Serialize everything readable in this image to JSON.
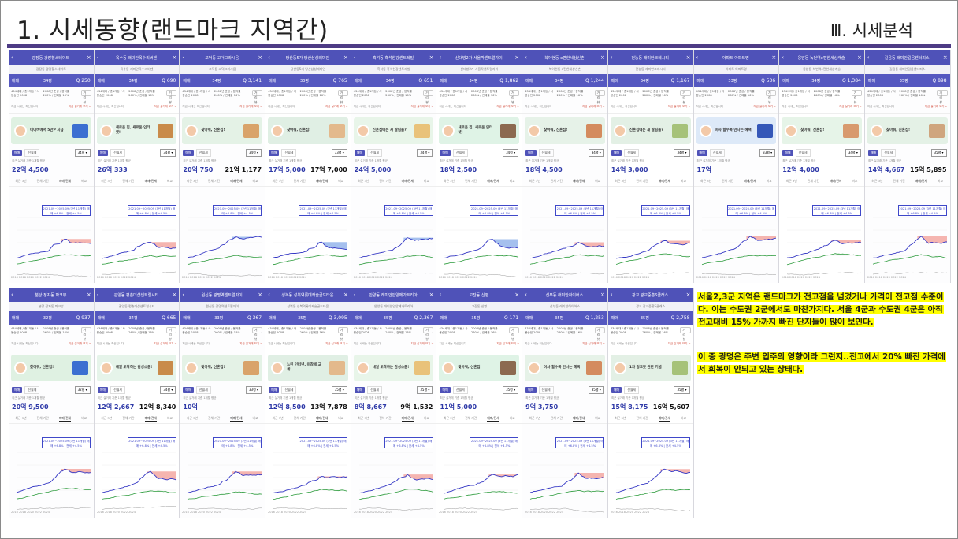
{
  "slide": {
    "title": "1. 시세동향(랜드마크 지역간)",
    "section": "Ⅲ. 시세분석"
  },
  "colors": {
    "accent": "#4d3b85",
    "header": "#4f52b8",
    "line_sale": "#3437c4",
    "line_jeonse": "#2a9a3a",
    "area_up": "#f2a39c",
    "area_down": "#8fb0ea",
    "highlight": "#ffff00"
  },
  "notes": {
    "p1": "서울2,3군 지역은 랜드마크가 전고점을 넘겼거나 가격이 전고점 수준이다. 이는 수도권 2군에서도 마찬가지다. 서울 4군과 수도권 4군은 아직 전고대비 15% 가까지 빠진 단지들이 많이 보인다.",
    "p2": "이 중 광명은 주변 입주의 영향이라 그런지..전고에서 20% 빠진 가격에서 회복이 안되고 있는 상태다."
  },
  "cards_row1": [
    {
      "name": "광장동 광장힐스테이트",
      "price": "22억 4,500",
      "jeonse": "",
      "area": "34평",
      "count": "250",
      "banner": "네이버에서 5만P 지급",
      "trend": "up"
    },
    {
      "name": "옥수동 래미안옥수리버젠",
      "price": "26억 333",
      "jeonse": "",
      "area": "34평",
      "count": "690",
      "banner": "새로운 집, 새로운 인터넷!",
      "trend": "up"
    },
    {
      "name": "고덕동 고덕그라시움",
      "price": "20억 750",
      "jeonse": "21억 1,177",
      "area": "34평",
      "count": "3,141",
      "banner": "찾아줘, 신혼집!",
      "trend": "down"
    },
    {
      "name": "당산동5가 당산삼성래미안",
      "price": "17억 5,000",
      "jeonse": "17억 7,000",
      "area": "33평",
      "count": "765",
      "banner": "찾아줘, 신혼집!",
      "trend": "down"
    },
    {
      "name": "흑석동 흑석한강센트레빌",
      "price": "24억 5,000",
      "jeonse": "",
      "area": "34평",
      "count": "651",
      "banner": "신혼집에는 새 살림을?",
      "trend": "down"
    },
    {
      "name": "신대방2가 서울팍센트럴자이",
      "price": "18억 2,500",
      "jeonse": "",
      "area": "34평",
      "count": "1,862",
      "banner": "새로운 집, 새로운 인터넷!",
      "trend": "down"
    },
    {
      "name": "북아현동 e편한세상신촌",
      "price": "18억 4,500",
      "jeonse": "",
      "area": "34평",
      "count": "1,244",
      "banner": "찾아줘, 신혼집!",
      "trend": "up"
    },
    {
      "name": "전농동 래미안크레시티",
      "price": "14억 3,000",
      "jeonse": "",
      "area": "34평",
      "count": "1,167",
      "banner": "신혼집에는 새 살림을?",
      "trend": "up"
    },
    {
      "name": "아파트 아파트명",
      "price": "17억",
      "jeonse": "",
      "area": "33평",
      "count": "536",
      "banner": "이사 할수록 만나는 혜택",
      "trend": "up"
    },
    {
      "name": "응암동 녹번역e편한세상캐슬",
      "price": "12억 4,000",
      "jeonse": "",
      "area": "34평",
      "count": "1,384",
      "banner": "찾아줘, 신혼집!",
      "trend": "up"
    },
    {
      "name": "길음동 래미안길음센터피스",
      "price": "14억 4,667",
      "jeonse": "15억 5,895",
      "area": "35평",
      "count": "898",
      "banner": "찾아줘, 신혼집!",
      "trend": "up"
    }
  ],
  "cards_row2": [
    {
      "name": "분당 정자동 파크뷰",
      "price": "20억 9,500",
      "jeonse": "",
      "area": "32평",
      "count": "937",
      "banner": "찾아줘, 신혼집!",
      "trend": "up"
    },
    {
      "name": "관양동 평촌더샵센트럴시티",
      "price": "12억 2,667",
      "jeonse": "12억 8,340",
      "area": "34평",
      "count": "665",
      "banner": "내일 도착하는 감성소품!",
      "trend": "up"
    },
    {
      "name": "원신동 광명역센트럴자이",
      "price": "10억",
      "jeonse": "",
      "area": "33평",
      "count": "367",
      "banner": "찾아줘, 신혼집!",
      "trend": "up"
    },
    {
      "name": "성복동 성복역롯데캐슬골드타운",
      "price": "12억 8,500",
      "jeonse": "13억 7,878",
      "area": "35평",
      "count": "3,095",
      "banner": "느린 인터넷, 이참에 교체!",
      "trend": "up"
    },
    {
      "name": "안양동 래미안안양메가트리아",
      "price": "8억 8,667",
      "jeonse": "9억 1,532",
      "area": "35평",
      "count": "2,367",
      "banner": "내일 도착하는 감성소품!",
      "trend": "up"
    },
    {
      "name": "고잔동 신영",
      "price": "11억 5,000",
      "jeonse": "",
      "area": "35평",
      "count": "171",
      "banner": "찾아줘, 신혼집!",
      "trend": "up"
    },
    {
      "name": "선부동 래미안하이어스",
      "price": "9억 3,750",
      "jeonse": "",
      "area": "35평",
      "count": "1,253",
      "banner": "이사 할수록 만나는 혜택",
      "trend": "up"
    },
    {
      "name": "광교 광교중흥S클래스",
      "price": "15억 8,175",
      "jeonse": "16억 5,607",
      "area": "35평",
      "count": "2,758",
      "banner": "1차 링크봇 완판 기념",
      "trend": "up"
    }
  ],
  "card_ui": {
    "trade": "매매",
    "back": "‹",
    "close": "×",
    "sort": "전월세",
    "trade_tab": "매매",
    "sub": "최근 실거래 기준 1개월 평균",
    "period_tabs": [
      "최근 3년",
      "전체 기간",
      "매매/전세",
      "비교"
    ],
    "stats_a": "434세대 / 총1개동 / 사용승인 2008",
    "stats_b": "2008년 준공 / 용적률 260% / 건폐율 16%",
    "action": "거리뷰",
    "link_a": "지금 시세는 최신입니다",
    "link_b": "지금 실거래 보기 >",
    "tip": "2021.09~2025.09 (3년 11개월) 매매 +6.8% | 전세 +4.5%",
    "years": "2016  2018  2020  2022  2024"
  }
}
